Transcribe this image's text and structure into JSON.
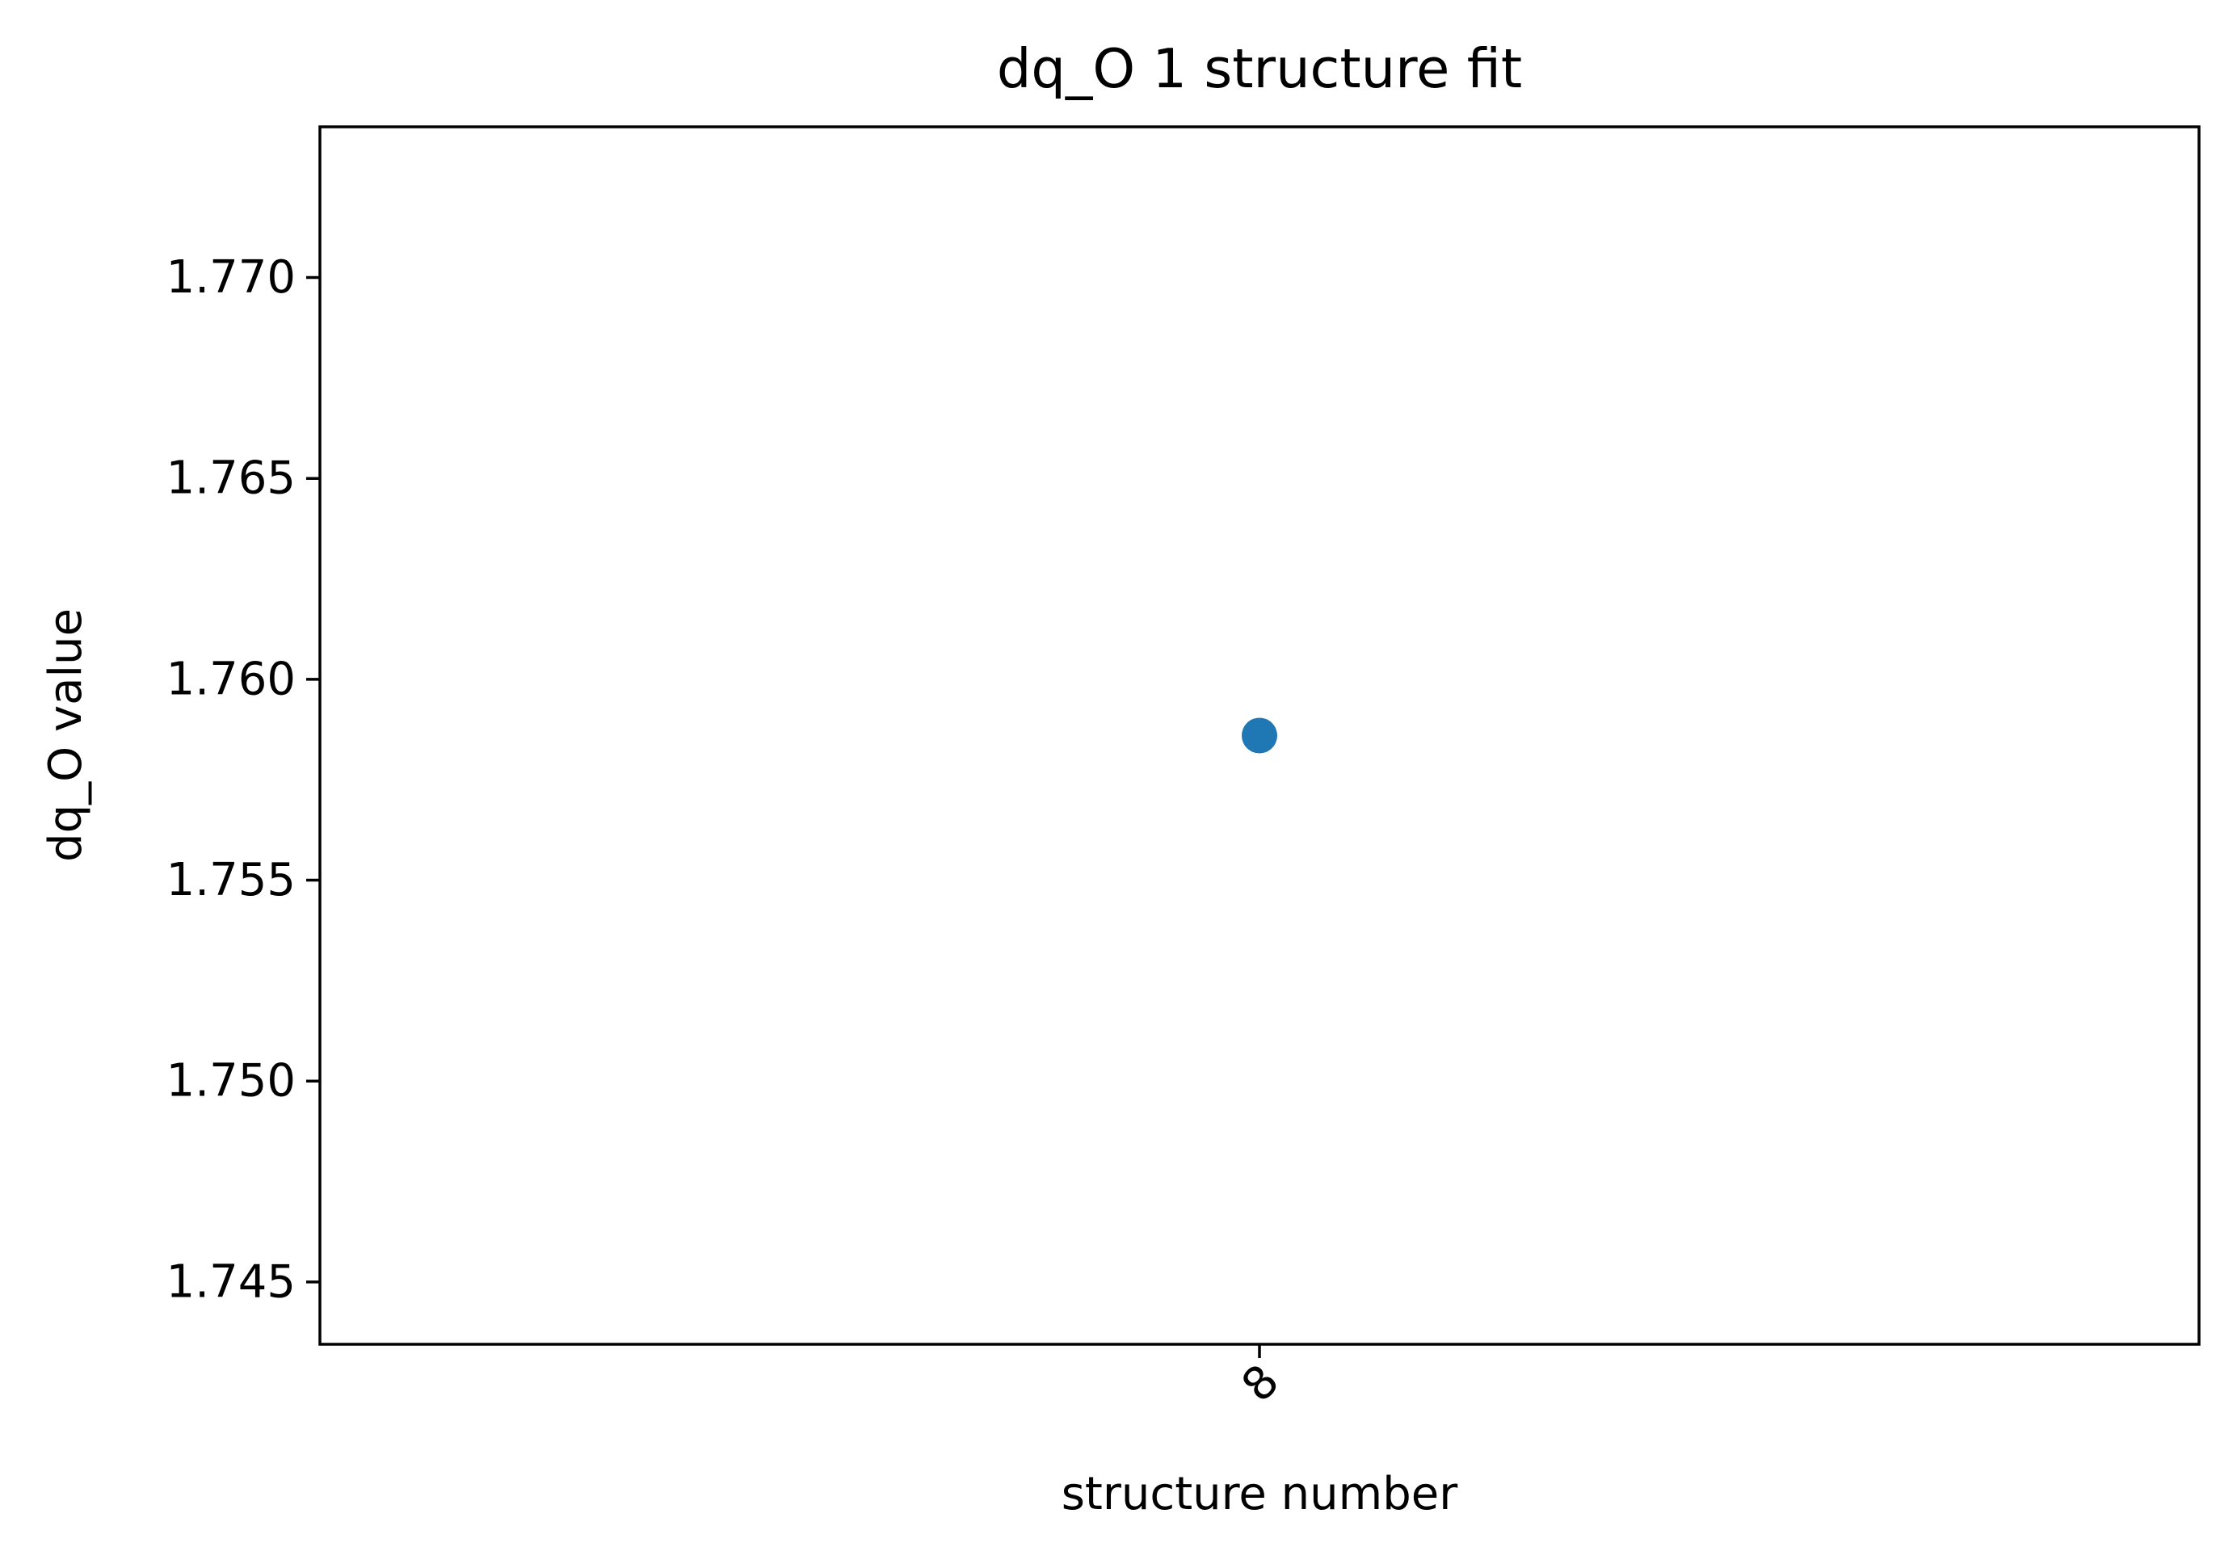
{
  "chart_data": {
    "type": "scatter",
    "title": "dq_O 1 structure fit",
    "xlabel": "structure number",
    "ylabel": "dq_O value",
    "categories": [
      "8"
    ],
    "series": [
      {
        "values": [
          1.7586
        ],
        "color": "#1f77b4"
      }
    ],
    "ylim": [
      1.74345,
      1.77375
    ],
    "yticks": [
      1.745,
      1.75,
      1.755,
      1.76,
      1.765,
      1.77
    ],
    "ytick_labels": [
      "1.745",
      "1.750",
      "1.755",
      "1.760",
      "1.765",
      "1.770"
    ],
    "xtick_rotation": 45,
    "grid": false,
    "legend": "none"
  }
}
